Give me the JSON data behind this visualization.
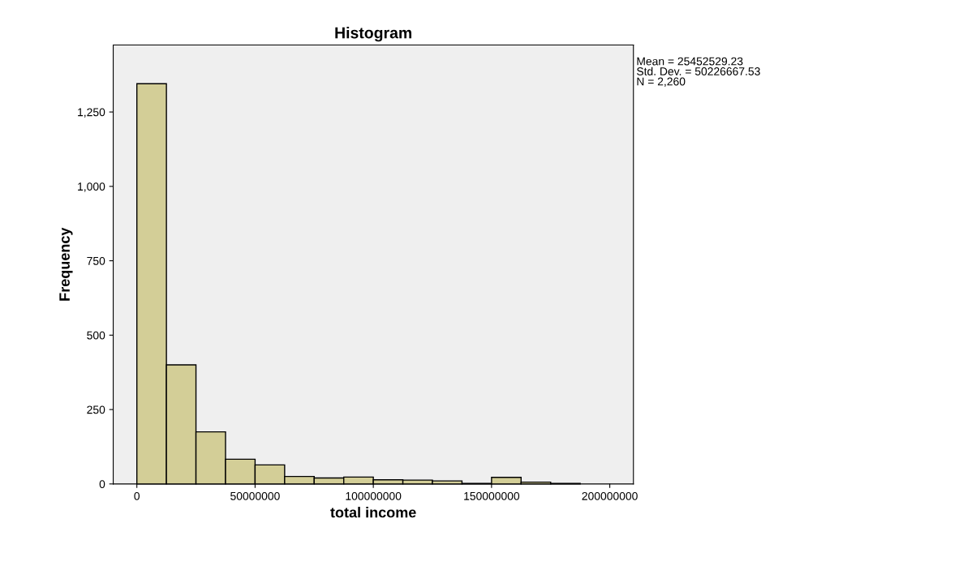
{
  "chart_data": {
    "type": "histogram",
    "title": "Histogram",
    "xlabel": "total income",
    "ylabel": "Frequency",
    "bins": [
      0,
      12500000,
      25000000,
      37500000,
      50000000,
      62500000,
      75000000,
      87500000,
      100000000,
      112500000,
      125000000,
      137500000,
      150000000,
      162500000,
      175000000,
      187500000
    ],
    "values": [
      1345,
      400,
      175,
      83,
      64,
      25,
      20,
      23,
      14,
      13,
      10,
      2,
      22,
      6,
      2
    ],
    "color": "#d3ce97",
    "xlim": [
      -10000000,
      210000000
    ],
    "xticks": [
      0,
      50000000,
      100000000,
      150000000,
      200000000
    ],
    "ylim": [
      0,
      1475
    ],
    "yticks": [
      0,
      250,
      500,
      750,
      {
        "value": 1000,
        "label": "1,000"
      },
      {
        "value": 1250,
        "label": "1,250"
      }
    ],
    "grid": false,
    "legend": false,
    "annotations": [
      "Mean = 25452529.23",
      "Std. Dev. = 50226667.53",
      "N = 2,260"
    ]
  }
}
